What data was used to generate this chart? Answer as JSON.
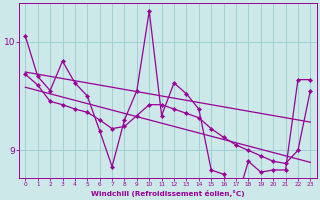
{
  "x": [
    0,
    1,
    2,
    3,
    4,
    5,
    6,
    7,
    8,
    9,
    10,
    11,
    12,
    13,
    14,
    15,
    16,
    17,
    18,
    19,
    20,
    21,
    22,
    23
  ],
  "y_main": [
    10.05,
    9.68,
    9.55,
    9.82,
    9.62,
    9.5,
    9.18,
    8.85,
    9.28,
    9.55,
    10.28,
    9.32,
    9.62,
    9.52,
    9.38,
    8.82,
    8.78,
    8.52,
    8.9,
    8.8,
    8.82,
    8.82,
    9.65,
    9.65
  ],
  "y_smooth": [
    9.7,
    9.6,
    9.45,
    9.42,
    9.38,
    9.35,
    9.28,
    9.2,
    9.22,
    9.32,
    9.42,
    9.42,
    9.38,
    9.34,
    9.3,
    9.2,
    9.12,
    9.05,
    9.0,
    8.95,
    8.9,
    8.88,
    9.0,
    9.55
  ],
  "y_trend_upper": [
    9.72,
    9.7,
    9.68,
    9.66,
    9.64,
    9.62,
    9.6,
    9.58,
    9.56,
    9.54,
    9.52,
    9.5,
    9.48,
    9.46,
    9.44,
    9.42,
    9.4,
    9.38,
    9.36,
    9.34,
    9.32,
    9.3,
    9.28,
    9.26
  ],
  "y_trend_lower": [
    9.58,
    9.55,
    9.52,
    9.49,
    9.46,
    9.43,
    9.4,
    9.37,
    9.34,
    9.31,
    9.28,
    9.25,
    9.22,
    9.19,
    9.16,
    9.13,
    9.1,
    9.07,
    9.04,
    9.01,
    8.98,
    8.95,
    8.92,
    8.89
  ],
  "line_color": "#990099",
  "bg_color": "#cce8e8",
  "plot_bg_color": "#cce8e8",
  "grid_color": "#99cccc",
  "xlabel": "Windchill (Refroidissement éolien,°C)",
  "ylim": [
    8.75,
    10.35
  ],
  "xlim_min": -0.5,
  "xlim_max": 23.5,
  "yticks": [
    9,
    10
  ],
  "xticks": [
    0,
    1,
    2,
    3,
    4,
    5,
    6,
    7,
    8,
    9,
    10,
    11,
    12,
    13,
    14,
    15,
    16,
    17,
    18,
    19,
    20,
    21,
    22,
    23
  ]
}
